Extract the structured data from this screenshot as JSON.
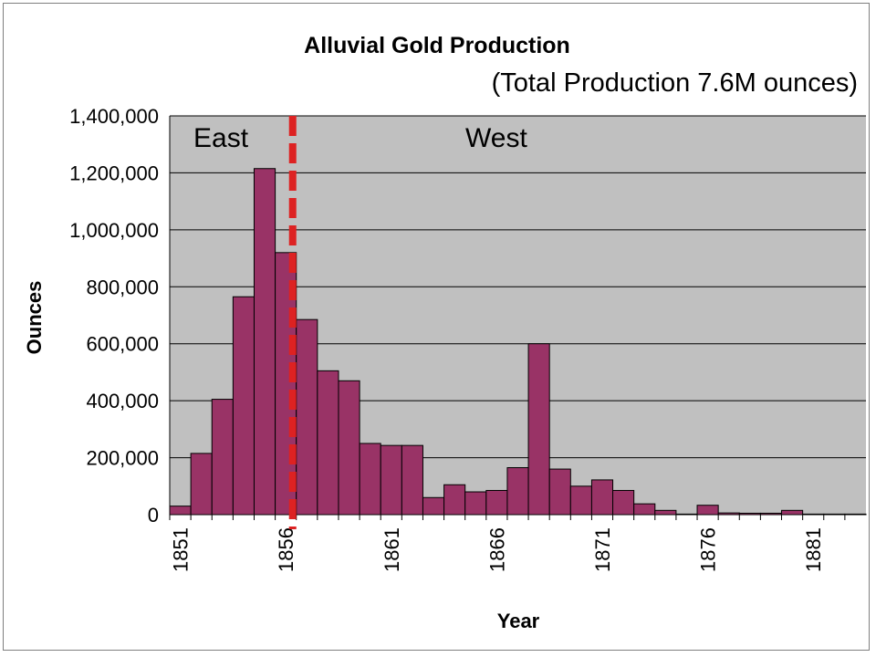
{
  "chart_data": {
    "type": "bar",
    "title": "Alluvial Gold Production",
    "subtitle": "(Total Production 7.6M ounces)",
    "xlabel": "Year",
    "ylabel": "Ounces",
    "ylim": [
      0,
      1400000
    ],
    "yticks": [
      "0",
      "200,000",
      "400,000",
      "600,000",
      "800,000",
      "1,000,000",
      "1,200,000",
      "1,400,000"
    ],
    "xticks": [
      "1851",
      "1856",
      "1861",
      "1866",
      "1871",
      "1876",
      "1881"
    ],
    "grid": true,
    "x": [
      1851,
      1852,
      1853,
      1854,
      1855,
      1856,
      1857,
      1858,
      1859,
      1860,
      1861,
      1862,
      1863,
      1864,
      1865,
      1866,
      1867,
      1868,
      1869,
      1870,
      1871,
      1872,
      1873,
      1874,
      1875,
      1876,
      1877,
      1878,
      1879,
      1880,
      1881,
      1882,
      1883
    ],
    "values": [
      30000,
      215000,
      405000,
      765000,
      1215000,
      920000,
      685000,
      505000,
      470000,
      250000,
      243000,
      243000,
      60000,
      105000,
      80000,
      85000,
      165000,
      600000,
      160000,
      100000,
      122000,
      85000,
      38000,
      15000,
      2000,
      33000,
      6000,
      5000,
      5000,
      15000,
      2000,
      2000,
      2000
    ],
    "bar_color": "#993366",
    "plot_background": "#c0c0c0",
    "divider_color": "#dd2222",
    "divider_year": 1857,
    "regions": [
      "East",
      "West"
    ]
  }
}
